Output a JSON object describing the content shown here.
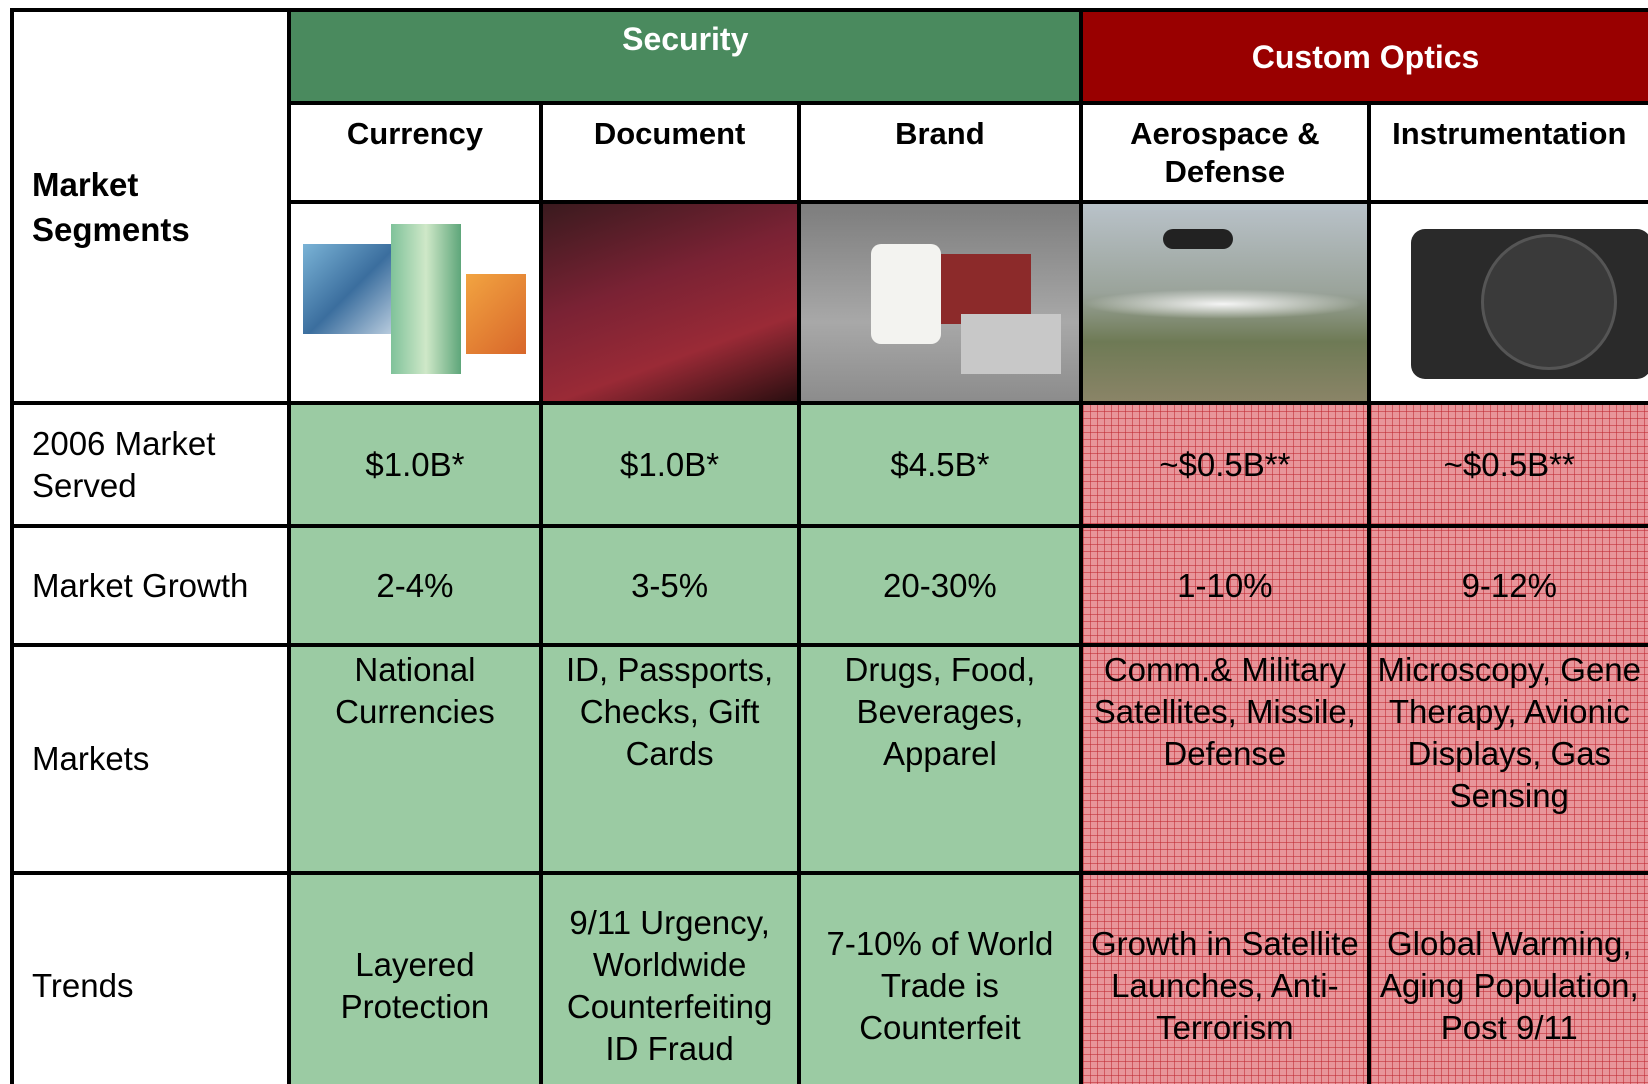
{
  "header": {
    "corner": "Market Segments",
    "groups": [
      "Security",
      "Custom Optics"
    ],
    "segments": [
      "Currency",
      "Document",
      "Brand",
      "Aerospace & Defense",
      "Instrumentation"
    ]
  },
  "rows": [
    {
      "label": "2006 Market Served",
      "cells": [
        "$1.0B*",
        "$1.0B*",
        "$4.5B*",
        "~$0.5B**",
        "~$0.5B**"
      ]
    },
    {
      "label": "Market Growth",
      "cells": [
        "2-4%",
        "3-5%",
        "20-30%",
        "1-10%",
        "9-12%"
      ]
    },
    {
      "label": "Markets",
      "cells": [
        "National Currencies",
        "ID, Passports, Checks, Gift Cards",
        "Drugs, Food, Beverages, Apparel",
        "Comm.& Military Satellites, Missile, Defense",
        "Microscopy, Gene Therapy, Avionic Displays, Gas Sensing"
      ]
    },
    {
      "label": "Trends",
      "cells": [
        "Layered Protection",
        "9/11 Urgency, Worldwide Counterfeiting ID Fraud",
        "7-10% of World Trade is Counterfeit",
        "Growth in Satellite Launches, Anti-Terrorism",
        "Global Warming, Aging Population, Post 9/11"
      ]
    }
  ]
}
